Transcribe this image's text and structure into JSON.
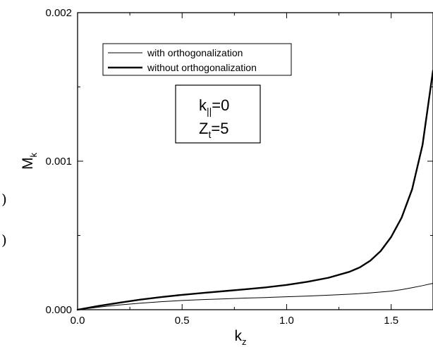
{
  "chart_data": {
    "type": "line",
    "title": "",
    "xlabel": "k",
    "xlabel_sub": "z",
    "ylabel": "M",
    "ylabel_sub": "k",
    "xlim": [
      0.0,
      1.7
    ],
    "ylim": [
      0.0,
      0.002
    ],
    "grid": false,
    "legend_position": "top-left",
    "x_ticks": [
      "0.0",
      "0.5",
      "1.0",
      "1.5"
    ],
    "y_ticks": [
      "0.000",
      "0.001",
      "0.002"
    ],
    "series": [
      {
        "name": "with orthogonalization",
        "line_weight": "thin",
        "points": [
          [
            0.0,
            0.0
          ],
          [
            0.1,
            1.7e-05
          ],
          [
            0.2,
            3.2e-05
          ],
          [
            0.3,
            4.4e-05
          ],
          [
            0.4,
            5.4e-05
          ],
          [
            0.5,
            6.2e-05
          ],
          [
            0.6,
            6.8e-05
          ],
          [
            0.7,
            7.3e-05
          ],
          [
            0.8,
            7.8e-05
          ],
          [
            0.9,
            8.2e-05
          ],
          [
            1.0,
            8.7e-05
          ],
          [
            1.1,
            9.2e-05
          ],
          [
            1.2,
            9.8e-05
          ],
          [
            1.3,
            0.000104
          ],
          [
            1.4,
            0.000113
          ],
          [
            1.5,
            0.000125
          ],
          [
            1.55,
            0.000135
          ],
          [
            1.6,
            0.000148
          ],
          [
            1.65,
            0.000162
          ],
          [
            1.7,
            0.000178
          ]
        ]
      },
      {
        "name": "without orthogonalization",
        "line_weight": "thick",
        "points": [
          [
            0.0,
            0.0
          ],
          [
            0.1,
            2.5e-05
          ],
          [
            0.2,
            4.7e-05
          ],
          [
            0.3,
            6.8e-05
          ],
          [
            0.4,
            8.5e-05
          ],
          [
            0.5,
            0.0001
          ],
          [
            0.6,
            0.000113
          ],
          [
            0.7,
            0.000125
          ],
          [
            0.8,
            0.000137
          ],
          [
            0.9,
            0.00015
          ],
          [
            1.0,
            0.000167
          ],
          [
            1.1,
            0.000188
          ],
          [
            1.2,
            0.000215
          ],
          [
            1.3,
            0.000255
          ],
          [
            1.35,
            0.000285
          ],
          [
            1.4,
            0.00033
          ],
          [
            1.45,
            0.000395
          ],
          [
            1.5,
            0.00049
          ],
          [
            1.55,
            0.00062
          ],
          [
            1.6,
            0.00081
          ],
          [
            1.65,
            0.00111
          ],
          [
            1.7,
            0.00161
          ]
        ]
      }
    ],
    "annotation": {
      "line1_main": "k",
      "line1_sub": "||",
      "line1_value": "=0",
      "line2_main": "Z",
      "line2_sub": "t",
      "line2_value": "=5"
    },
    "margin_fragments": [
      ")",
      ")"
    ]
  }
}
